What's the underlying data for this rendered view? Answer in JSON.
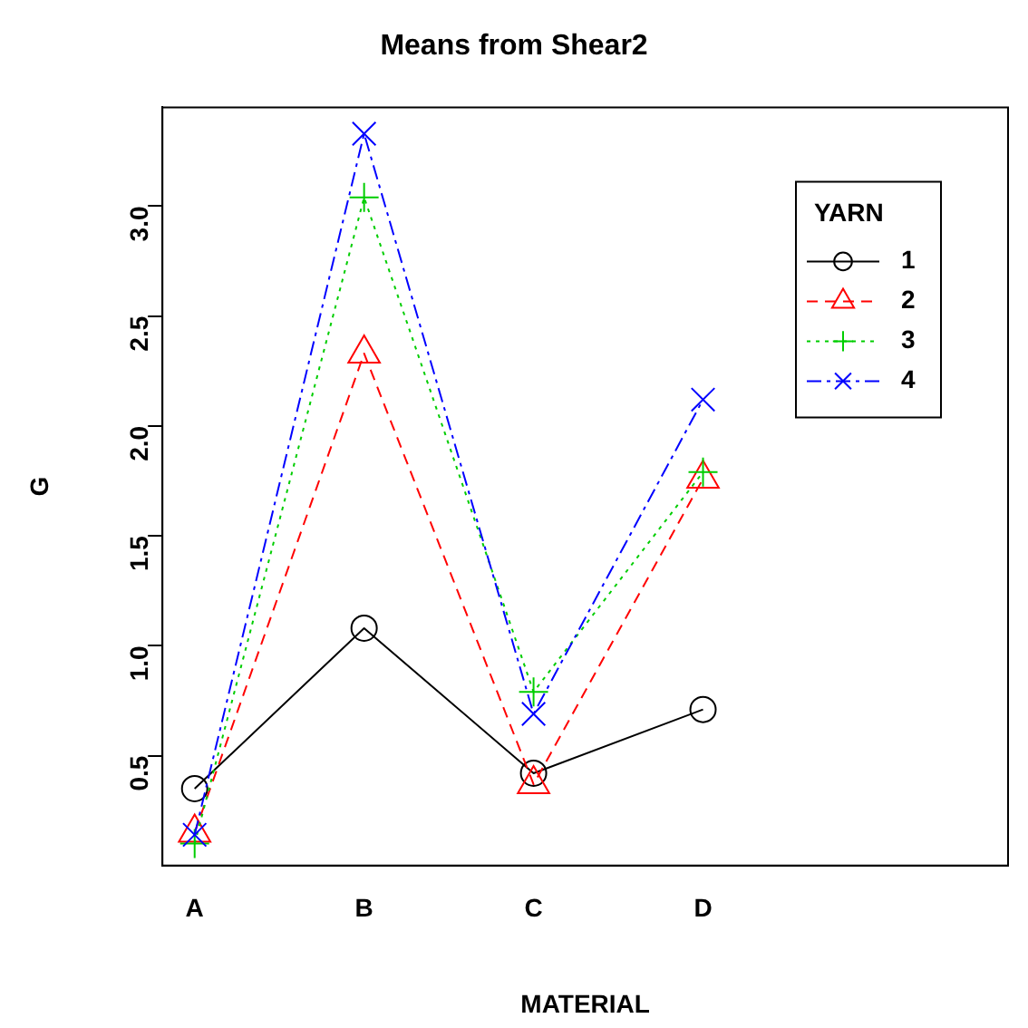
{
  "chart_data": {
    "type": "line",
    "title": "Means from Shear2",
    "xlabel": "MATERIAL",
    "ylabel": "G",
    "legend_title": "YARN",
    "legend": "top right",
    "grid": false,
    "categories": [
      "A",
      "B",
      "C",
      "D"
    ],
    "ylim": [
      0,
      3.45
    ],
    "yticks": [
      0.5,
      {
        "value": 1,
        "label": "1.0"
      },
      1.5,
      {
        "value": 2,
        "label": "2.0"
      },
      2.5,
      {
        "value": 3,
        "label": "3.0"
      }
    ],
    "series": [
      {
        "name": "1",
        "color": "#000000",
        "marker": "circle",
        "line_style": "solid",
        "values": [
          0.35,
          1.08,
          0.42,
          0.71
        ]
      },
      {
        "name": "2",
        "color": "#ff0000",
        "marker": "triangle",
        "line_style": "dashed",
        "values": [
          0.15,
          2.33,
          0.37,
          1.76
        ]
      },
      {
        "name": "3",
        "color": "#00cd00",
        "marker": "plus",
        "line_style": "dotted",
        "values": [
          0.1,
          3.04,
          0.79,
          1.79
        ]
      },
      {
        "name": "4",
        "color": "#0000ff",
        "marker": "cross",
        "line_style": "dashdot",
        "values": [
          0.14,
          3.33,
          0.69,
          2.12
        ]
      }
    ]
  }
}
